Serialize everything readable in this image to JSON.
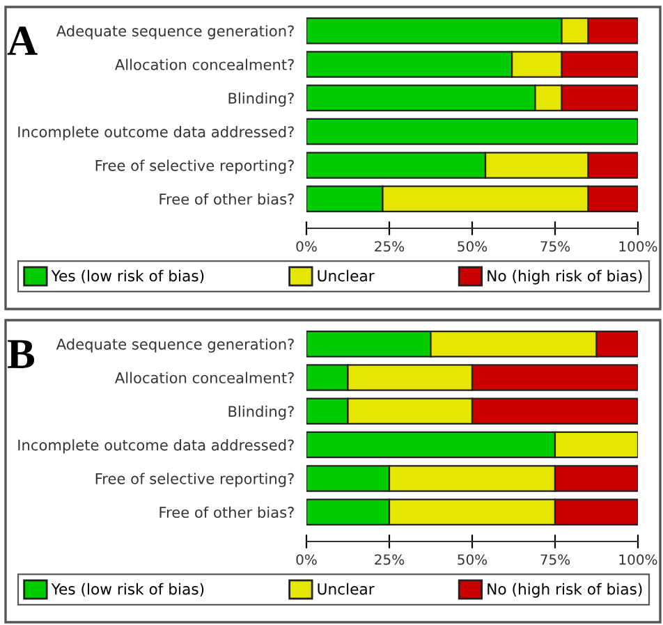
{
  "chart_data": [
    {
      "type": "bar",
      "orientation": "horizontal",
      "stacked": true,
      "title": "A",
      "categories": [
        "Adequate sequence generation?",
        "Allocation concealment?",
        "Blinding?",
        "Incomplete outcome data addressed?",
        "Free of selective reporting?",
        "Free of other bias?"
      ],
      "series": [
        {
          "name": "Yes (low risk of bias)",
          "color": "#00cc00",
          "values": [
            77,
            62,
            69,
            100,
            54,
            23
          ]
        },
        {
          "name": "Unclear",
          "color": "#e6e600",
          "values": [
            8,
            15,
            8,
            0,
            31,
            62
          ]
        },
        {
          "name": "No (high risk of bias)",
          "color": "#cc0000",
          "values": [
            15,
            23,
            23,
            0,
            15,
            15
          ]
        }
      ],
      "xlim": [
        0,
        100
      ],
      "xticks": [
        {
          "value": 0,
          "label": "0%"
        },
        {
          "value": 25,
          "label": "25%"
        },
        {
          "value": 50,
          "label": "50%"
        },
        {
          "value": 75,
          "label": "75%"
        },
        {
          "value": 100,
          "label": "100%"
        }
      ],
      "legend": "bottom",
      "grid": false
    },
    {
      "type": "bar",
      "orientation": "horizontal",
      "stacked": true,
      "title": "B",
      "categories": [
        "Adequate sequence generation?",
        "Allocation concealment?",
        "Blinding?",
        "Incomplete outcome data addressed?",
        "Free of selective reporting?",
        "Free of other bias?"
      ],
      "series": [
        {
          "name": "Yes (low risk of bias)",
          "color": "#00cc00",
          "values": [
            37.5,
            12.5,
            12.5,
            75,
            25,
            25
          ]
        },
        {
          "name": "Unclear",
          "color": "#e6e600",
          "values": [
            50,
            37.5,
            37.5,
            25,
            50,
            50
          ]
        },
        {
          "name": "No (high risk of bias)",
          "color": "#cc0000",
          "values": [
            12.5,
            50,
            50,
            0,
            25,
            25
          ]
        }
      ],
      "xlim": [
        0,
        100
      ],
      "xticks": [
        {
          "value": 0,
          "label": "0%"
        },
        {
          "value": 25,
          "label": "25%"
        },
        {
          "value": 50,
          "label": "50%"
        },
        {
          "value": 75,
          "label": "75%"
        },
        {
          "value": 100,
          "label": "100%"
        }
      ],
      "legend": "bottom",
      "grid": false
    }
  ]
}
